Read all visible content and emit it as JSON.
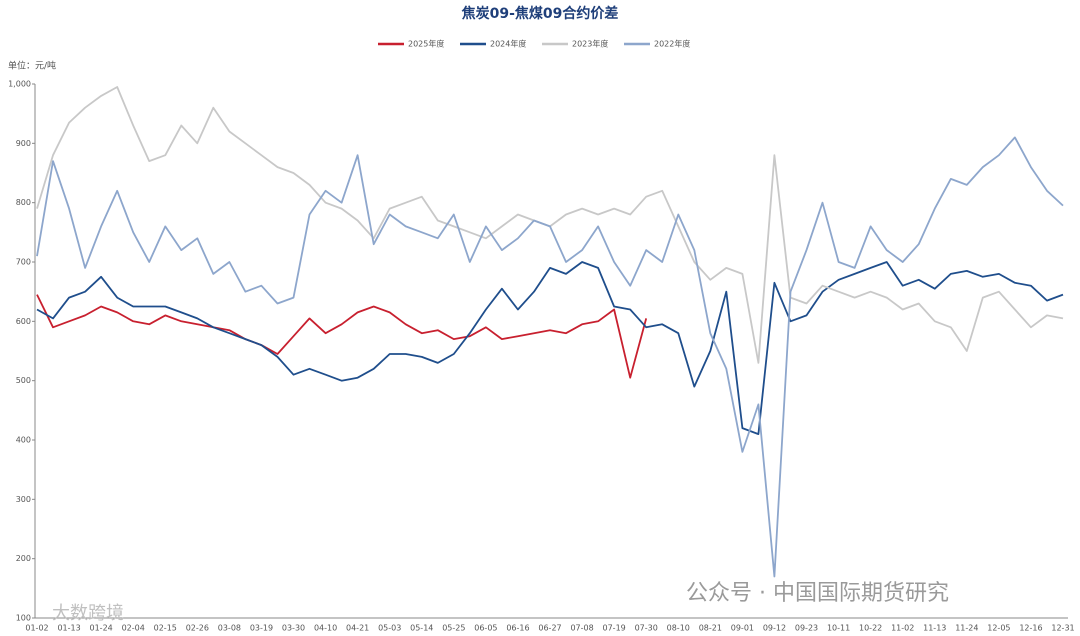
{
  "chart_data": {
    "type": "line",
    "title": "焦炭09-焦煤09合约价差",
    "unit_label": "单位：元/吨",
    "watermarks": [
      "公众号 · 中国国际期货研究",
      "大数跨境"
    ],
    "categories": [
      "01-02",
      null,
      "01-13",
      null,
      "01-24",
      null,
      "02-04",
      null,
      "02-15",
      null,
      "02-26",
      null,
      "03-08",
      null,
      "03-19",
      null,
      "03-30",
      null,
      "04-10",
      null,
      "04-21",
      null,
      "05-03",
      null,
      "05-14",
      null,
      "05-25",
      null,
      "06-05",
      null,
      "06-16",
      null,
      "06-27",
      null,
      "07-08",
      null,
      "07-19",
      null,
      "07-30",
      null,
      "08-10",
      null,
      "08-21",
      null,
      "09-01",
      null,
      "09-12",
      null,
      "09-23",
      null,
      "10-11",
      null,
      "10-22",
      null,
      "11-02",
      null,
      "11-13",
      null,
      "11-24",
      null,
      "12-05",
      null,
      "12-16",
      null,
      "12-31"
    ],
    "ylim": [
      100,
      1000
    ],
    "yticks": [
      100,
      200,
      300,
      400,
      500,
      600,
      700,
      800,
      900,
      {
        "value": 1000,
        "label": "1,000"
      }
    ],
    "grid": false,
    "series": [
      {
        "name": "2025年度",
        "color": "#c8202f",
        "values": [
          645,
          590,
          600,
          610,
          625,
          615,
          600,
          595,
          610,
          600,
          595,
          590,
          585,
          570,
          560,
          545,
          575,
          605,
          580,
          595,
          615,
          625,
          615,
          595,
          580,
          585,
          570,
          575,
          590,
          570,
          575,
          580,
          585,
          580,
          595,
          600,
          620,
          505,
          605,
          null,
          null,
          null,
          null,
          null,
          null,
          null,
          null,
          null,
          null,
          null,
          null,
          null,
          null,
          null,
          null,
          null,
          null,
          null,
          null,
          null,
          null,
          null,
          null,
          null,
          null
        ]
      },
      {
        "name": "2024年度",
        "color": "#1f4e8c",
        "values": [
          620,
          605,
          640,
          650,
          675,
          640,
          625,
          625,
          625,
          615,
          605,
          590,
          580,
          570,
          560,
          540,
          510,
          520,
          510,
          500,
          505,
          520,
          545,
          545,
          540,
          530,
          545,
          580,
          620,
          655,
          620,
          650,
          690,
          680,
          700,
          690,
          625,
          620,
          590,
          595,
          580,
          490,
          550,
          650,
          420,
          410,
          665,
          600,
          610,
          650,
          670,
          680,
          690,
          700,
          660,
          670,
          655,
          680,
          685,
          675,
          680,
          665,
          660,
          635,
          645
        ]
      },
      {
        "name": "2023年度",
        "color": "#c8c8c8",
        "values": [
          790,
          880,
          935,
          960,
          980,
          995,
          930,
          870,
          880,
          930,
          900,
          960,
          920,
          900,
          880,
          860,
          850,
          830,
          800,
          790,
          770,
          740,
          790,
          800,
          810,
          770,
          760,
          750,
          740,
          760,
          780,
          770,
          760,
          780,
          790,
          780,
          790,
          780,
          810,
          820,
          760,
          700,
          670,
          690,
          680,
          530,
          880,
          640,
          630,
          660,
          650,
          640,
          650,
          640,
          620,
          630,
          600,
          590,
          550,
          640,
          650,
          620,
          590,
          610,
          605
        ]
      },
      {
        "name": "2022年度",
        "color": "#8da6cc",
        "values": [
          710,
          870,
          790,
          690,
          760,
          820,
          750,
          700,
          760,
          720,
          740,
          680,
          700,
          650,
          660,
          630,
          640,
          780,
          820,
          800,
          880,
          730,
          780,
          760,
          750,
          740,
          780,
          700,
          760,
          720,
          740,
          770,
          760,
          700,
          720,
          760,
          700,
          660,
          720,
          700,
          780,
          720,
          580,
          520,
          380,
          460,
          170,
          650,
          720,
          800,
          700,
          690,
          760,
          720,
          700,
          730,
          790,
          840,
          830,
          860,
          880,
          910,
          860,
          820,
          795
        ]
      }
    ]
  }
}
